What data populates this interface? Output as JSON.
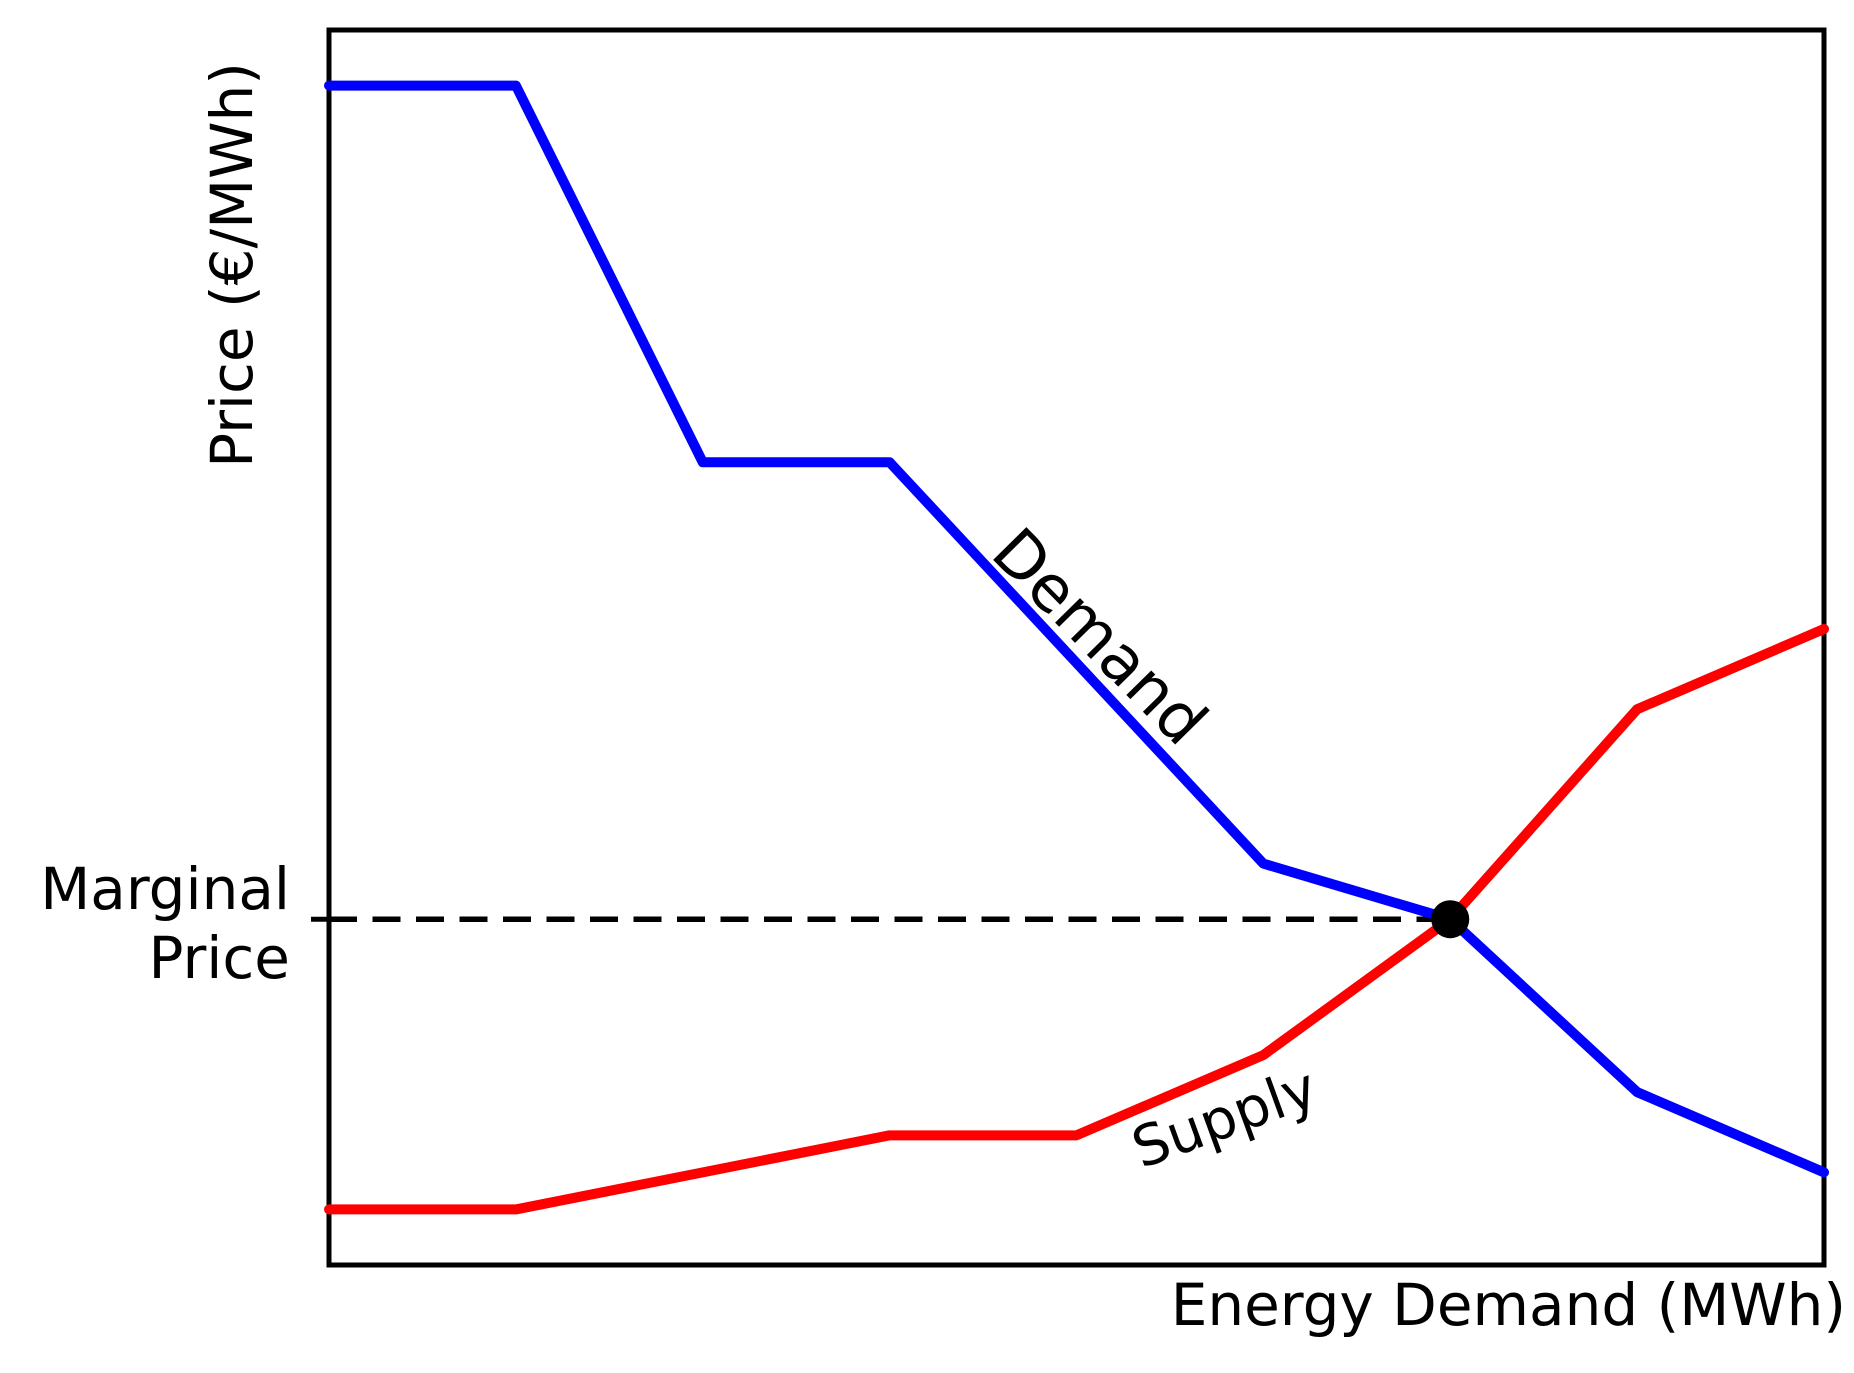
{
  "labels": {
    "xlabel": "Energy Demand (MWh)",
    "ylabel": "Price (€/MWh)",
    "marginal_line1": "Marginal",
    "marginal_line2": "Price",
    "demand": "Demand",
    "supply": "Supply"
  },
  "colors": {
    "demand": "#0000FF",
    "supply": "#FF0000",
    "axis": "#000000",
    "marker": "#000000",
    "background": "#FFFFFF"
  },
  "chart_data": {
    "type": "line",
    "title": "",
    "xlabel": "Energy Demand (MWh)",
    "ylabel": "Price (€/MWh)",
    "axis_note": "no numeric tick labels shown; values are percent of axis range (x: 0-100 left to right, y: 0-100 bottom to top)",
    "xlim": [
      0,
      100
    ],
    "ylim": [
      0,
      100
    ],
    "grid": false,
    "legend_position": "inline rotated labels on curves",
    "series": [
      {
        "name": "Demand",
        "color": "#0000FF",
        "x": [
          0,
          12.5,
          25,
          37.5,
          62.5,
          75,
          87.5,
          100
        ],
        "y": [
          95.5,
          95.5,
          65,
          65,
          32.5,
          28,
          14,
          7.5
        ]
      },
      {
        "name": "Supply",
        "color": "#FF0000",
        "x": [
          0,
          12.5,
          37.5,
          50,
          62.5,
          75,
          87.5,
          100
        ],
        "y": [
          4.5,
          4.5,
          10.5,
          10.5,
          17,
          28,
          45,
          51.5
        ]
      }
    ],
    "annotations": {
      "equilibrium_point": {
        "x": 75,
        "y": 28,
        "marker": "filled black circle"
      },
      "marginal_price_dashed_line": {
        "y": 28,
        "from_x": 0,
        "to_x": 75,
        "style": "black dashed horizontal line from y-axis to equilibrium point"
      },
      "marginal_price_label": "Marginal Price"
    }
  }
}
